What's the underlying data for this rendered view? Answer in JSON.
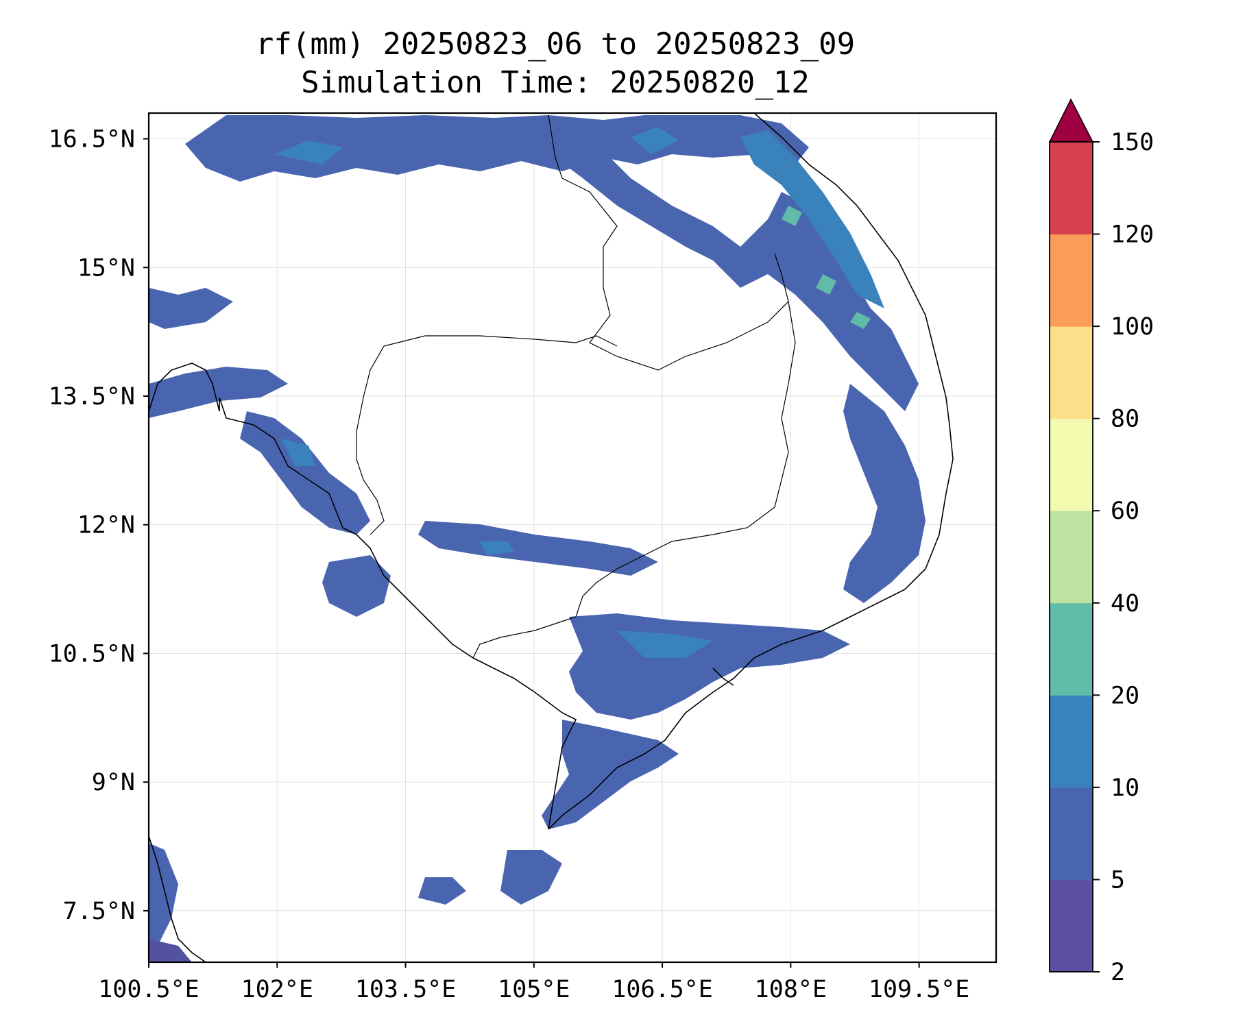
{
  "title": {
    "line1": "rf(mm) 20250823_06 to 20250823_09",
    "line2": "Simulation Time: 20250820_12"
  },
  "map": {
    "lon_range": [
      100.5,
      110.4
    ],
    "lat_range": [
      6.9,
      16.8
    ],
    "lon_ticks": [
      {
        "value": 100.5,
        "label": "100.5°E"
      },
      {
        "value": 102.0,
        "label": "102°E"
      },
      {
        "value": 103.5,
        "label": "103.5°E"
      },
      {
        "value": 105.0,
        "label": "105°E"
      },
      {
        "value": 106.5,
        "label": "106.5°E"
      },
      {
        "value": 108.0,
        "label": "108°E"
      },
      {
        "value": 109.5,
        "label": "109.5°E"
      }
    ],
    "lat_ticks": [
      {
        "value": 16.5,
        "label": "16.5°N"
      },
      {
        "value": 15.0,
        "label": "15°N"
      },
      {
        "value": 13.5,
        "label": "13.5°N"
      },
      {
        "value": 12.0,
        "label": "12°N"
      },
      {
        "value": 10.5,
        "label": "10.5°N"
      },
      {
        "value": 9.0,
        "label": "9°N"
      },
      {
        "value": 7.5,
        "label": "7.5°N"
      }
    ],
    "gridlines": true
  },
  "colorbar": {
    "levels": [
      2,
      5,
      10,
      20,
      40,
      60,
      80,
      100,
      120,
      150
    ],
    "labels": [
      "2",
      "5",
      "10",
      "20",
      "40",
      "60",
      "80",
      "100",
      "120",
      "150"
    ],
    "colors": [
      "#5e4fa2",
      "#4a65b0",
      "#3a82bc",
      "#60bba8",
      "#bde3a0",
      "#f3fab0",
      "#fcdf88",
      "#f99d59",
      "#d5414f"
    ],
    "extend_color": "#9e0142",
    "extend": "max"
  },
  "rain_colors": {
    "light": "#5252a0",
    "moderate": "#4a65b0",
    "heavy": "#3a82bc",
    "intense": "#60bba8",
    "peak": "#bde3a0"
  }
}
